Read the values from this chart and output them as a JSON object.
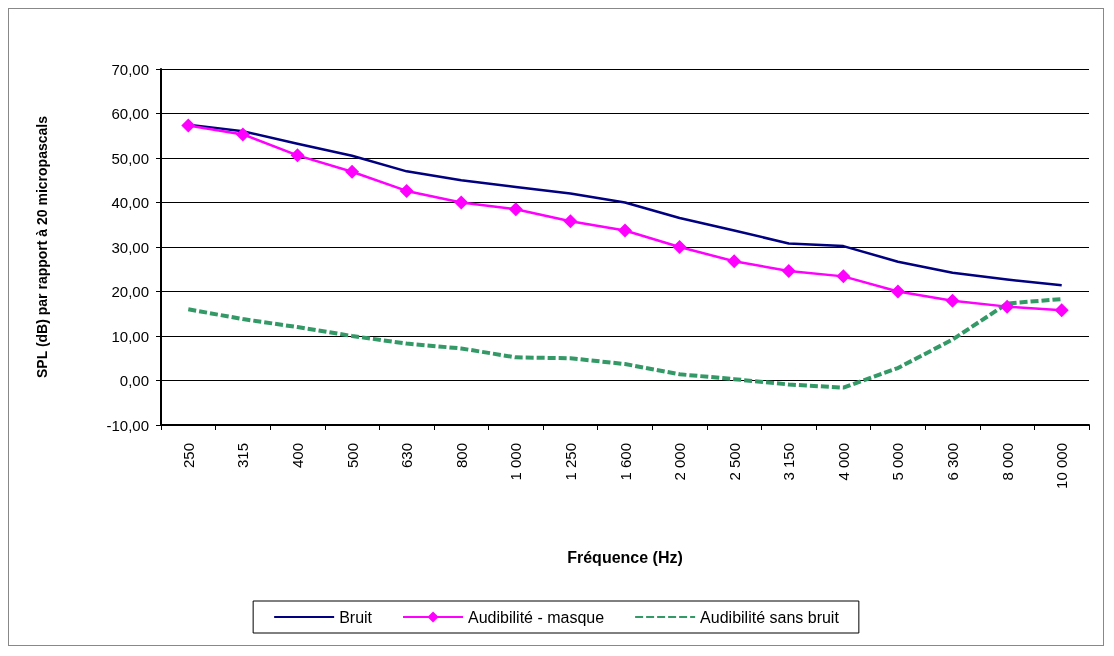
{
  "chart_data": {
    "type": "line",
    "xlabel": "Fréquence (Hz)",
    "ylabel": "SPL (dB) par rapport à 20 micropascals",
    "categories": [
      "250",
      "315",
      "400",
      "500",
      "630",
      "800",
      "1 000",
      "1 250",
      "1 600",
      "2 000",
      "2 500",
      "3 150",
      "4 000",
      "5 000",
      "6 300",
      "8 000",
      "10 000"
    ],
    "series": [
      {
        "name": "Bruit",
        "color": "#000080",
        "marker": "none",
        "line_style": "solid",
        "values": [
          57.5,
          56,
          53.2,
          50.5,
          47,
          45,
          43.5,
          42,
          40,
          36.5,
          33.7,
          30.8,
          30.2,
          26.7,
          24.2,
          22.7,
          21.4
        ]
      },
      {
        "name": "Audibilité - masque",
        "color": "#ff00ff",
        "marker": "diamond",
        "line_style": "solid",
        "values": [
          57.3,
          55.3,
          50.6,
          46.9,
          42.6,
          40,
          38.5,
          35.8,
          33.7,
          30,
          26.8,
          24.6,
          23.4,
          20,
          17.9,
          16.6,
          15.8
        ]
      },
      {
        "name": "Audibilité sans bruit",
        "color": "#339966",
        "marker": "none",
        "line_style": "dashed",
        "values": [
          16,
          13.8,
          12,
          10,
          8.3,
          7.2,
          5.2,
          5,
          3.7,
          1.4,
          0.3,
          -0.9,
          -1.6,
          2.8,
          9.2,
          17.3,
          18.3
        ]
      }
    ],
    "ylim": [
      -10,
      70
    ],
    "yticks": [
      {
        "value": -10,
        "label": "-10,00"
      },
      {
        "value": 0,
        "label": "0,00"
      },
      {
        "value": 10,
        "label": "10,00"
      },
      {
        "value": 20,
        "label": "20,00"
      },
      {
        "value": 30,
        "label": "30,00"
      },
      {
        "value": 40,
        "label": "40,00"
      },
      {
        "value": 50,
        "label": "50,00"
      },
      {
        "value": 60,
        "label": "60,00"
      },
      {
        "value": 70,
        "label": "70,00"
      }
    ],
    "grid": "y",
    "legend": "bottom"
  }
}
